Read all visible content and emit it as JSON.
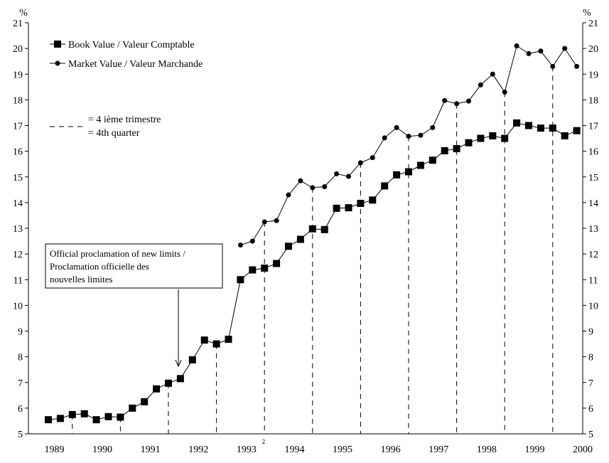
{
  "chart_data": {
    "type": "line",
    "y_unit": "%",
    "ylim": [
      5,
      21
    ],
    "y_ticks": [
      "5",
      "6",
      "7",
      "8",
      "9",
      "10",
      "11",
      "12",
      "13",
      "14",
      "15",
      "16",
      "17",
      "18",
      "19",
      "20",
      "21"
    ],
    "x_labels": [
      "1989",
      "1990",
      "1991",
      "1992",
      "1993",
      "1994",
      "1995",
      "1996",
      "1997",
      "1998",
      "1999",
      "2000"
    ],
    "x_label_footnote": "2",
    "grid": false,
    "legend_position": "top-left",
    "quarters": [
      "1989Q2",
      "1989Q3",
      "1989Q4",
      "1990Q1",
      "1990Q2",
      "1990Q3",
      "1990Q4",
      "1991Q1",
      "1991Q2",
      "1991Q3",
      "1991Q4",
      "1992Q1",
      "1992Q2",
      "1992Q3",
      "1992Q4",
      "1993Q1",
      "1993Q2",
      "1993Q3",
      "1993Q4",
      "1994Q1",
      "1994Q2",
      "1994Q3",
      "1994Q4",
      "1995Q1",
      "1995Q2",
      "1995Q3",
      "1995Q4",
      "1996Q1",
      "1996Q2",
      "1996Q3",
      "1996Q4",
      "1997Q1",
      "1997Q2",
      "1997Q3",
      "1997Q4",
      "1998Q1",
      "1998Q2",
      "1998Q3",
      "1998Q4",
      "1999Q1",
      "1999Q2",
      "1999Q3",
      "1999Q4",
      "2000Q1",
      "2000Q2"
    ],
    "series": [
      {
        "name": "Book Value / Valeur Comptable",
        "marker": "square",
        "values": [
          5.55,
          5.6,
          5.75,
          5.78,
          5.55,
          5.67,
          5.65,
          6.0,
          6.25,
          6.75,
          6.97,
          7.15,
          7.88,
          8.65,
          8.5,
          8.68,
          11.0,
          11.38,
          11.45,
          11.63,
          12.3,
          12.57,
          12.98,
          12.95,
          13.78,
          13.8,
          13.97,
          14.1,
          14.65,
          15.08,
          15.2,
          15.45,
          15.65,
          16.02,
          16.1,
          16.33,
          16.5,
          16.6,
          16.5,
          17.1,
          17.0,
          16.9,
          16.9,
          16.6,
          16.8
        ]
      },
      {
        "name": "Market Value / Valeur Marchande",
        "marker": "circle",
        "values": [
          null,
          null,
          null,
          null,
          null,
          null,
          null,
          null,
          null,
          null,
          null,
          null,
          null,
          null,
          null,
          null,
          12.35,
          12.5,
          13.25,
          13.3,
          14.3,
          14.85,
          14.58,
          14.62,
          15.12,
          15.02,
          15.55,
          15.75,
          16.52,
          16.92,
          16.58,
          16.62,
          16.92,
          17.97,
          17.85,
          17.95,
          18.58,
          19.0,
          18.3,
          20.1,
          19.8,
          19.9,
          19.3,
          20.0,
          19.3
        ]
      }
    ],
    "q4_marker_legend": [
      "= 4 ième trimestre",
      "= 4th quarter"
    ],
    "annotation": [
      "Official proclamation of new limits /",
      "Proclamation officielle des",
      "nouvelles limites"
    ]
  }
}
